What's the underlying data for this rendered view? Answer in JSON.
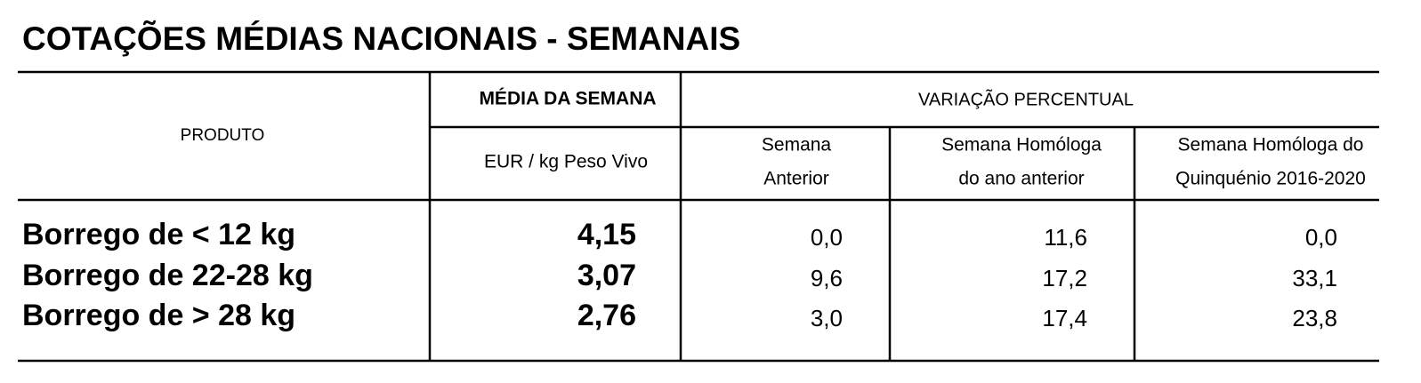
{
  "title": "COTAÇÕES MÉDIAS NACIONAIS - SEMANAIS",
  "table": {
    "header": {
      "product": "PRODUTO",
      "average": "MÉDIA DA SEMANA",
      "unit": "EUR / kg Peso Vivo",
      "variation": "VARIAÇÃO PERCENTUAL",
      "columns": [
        [
          "Semana",
          "Anterior"
        ],
        [
          "Semana Homóloga",
          "do ano anterior"
        ],
        [
          "Semana Homóloga do",
          "Quinquénio 2016-2020"
        ]
      ]
    },
    "rows": [
      [
        "Borrego de < 12 kg",
        "4,15",
        "0,0",
        "11,6",
        "0,0"
      ],
      [
        "Borrego de 22-28 kg",
        "3,07",
        "9,6",
        "17,2",
        "33,1"
      ],
      [
        "Borrego de > 28 kg",
        "2,76",
        "3,0",
        "17,4",
        "23,8"
      ]
    ]
  }
}
